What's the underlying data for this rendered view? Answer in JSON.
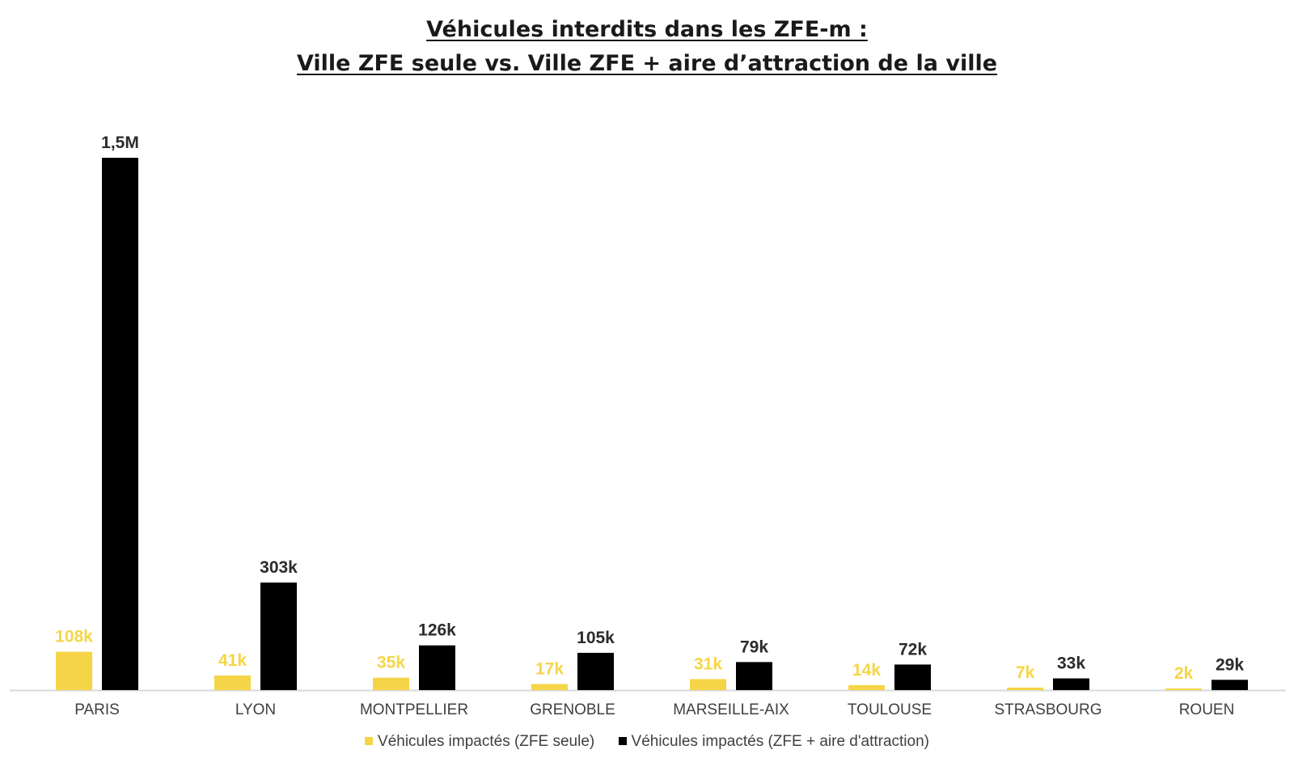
{
  "title": {
    "line1": "Véhicules interdits dans les ZFE-m :",
    "line2": "Ville ZFE seule vs. Ville ZFE + aire d’attraction de la ville"
  },
  "colors": {
    "series_zfe": "#F5D547",
    "series_aire": "#000000",
    "label_zfe": "#F5D547",
    "label_aire": "#2b2b2b",
    "axis": "#d9d9d9",
    "category_text": "#404040"
  },
  "chart_data": {
    "type": "bar",
    "title": "Véhicules interdits dans les ZFE-m : Ville ZFE seule vs. Ville ZFE + aire d’attraction de la ville",
    "categories": [
      "PARIS",
      "LYON",
      "MONTPELLIER",
      "GRENOBLE",
      "MARSEILLE-AIX",
      "TOULOUSE",
      "STRASBOURG",
      "ROUEN"
    ],
    "series": [
      {
        "name": "Véhicules impactés (ZFE seule)",
        "values": [
          108000,
          41000,
          35000,
          17000,
          31000,
          14000,
          7000,
          2000
        ],
        "labels": [
          "108k",
          "41k",
          "35k",
          "17k",
          "31k",
          "14k",
          "7k",
          "2k"
        ]
      },
      {
        "name": "Véhicules impactés (ZFE + aire d'attraction)",
        "values": [
          1500000,
          303000,
          126000,
          105000,
          79000,
          72000,
          33000,
          29000
        ],
        "labels": [
          "1,5M",
          "303k",
          "126k",
          "105k",
          "79k",
          "72k",
          "33k",
          "29k"
        ]
      }
    ],
    "xlabel": "",
    "ylabel": "",
    "ylim": [
      0,
      1500000
    ],
    "grid": false,
    "legend_position": "bottom"
  }
}
